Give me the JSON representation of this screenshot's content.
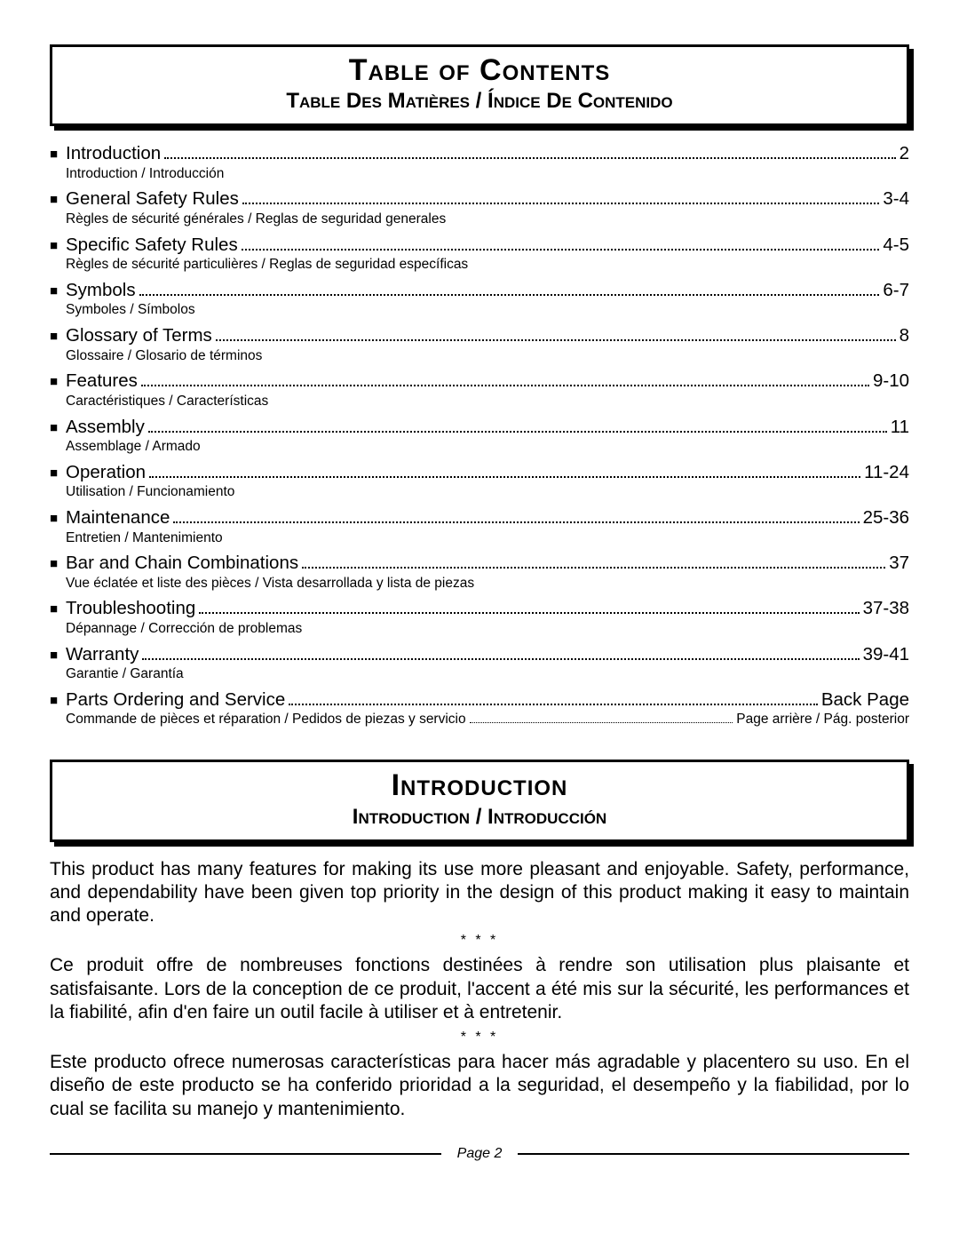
{
  "colors": {
    "text": "#000000",
    "background": "#ffffff",
    "box_border": "#000000",
    "box_shadow": "#000000",
    "dot_leader": "#000000",
    "footer_rule": "#000000"
  },
  "typography": {
    "body_font": "Arial, Helvetica, sans-serif",
    "title_size_pt": 26,
    "subtitle_size_pt": 18,
    "toc_label_size_pt": 15,
    "toc_sub_size_pt": 12,
    "body_size_pt": 16,
    "footer_size_pt": 12
  },
  "toc_header": {
    "title": "Table of Contents",
    "subtitle": "Table Des Matières / Índice De Contenido"
  },
  "toc": [
    {
      "label": "Introduction",
      "page": "2",
      "sub": "Introduction / Introducción"
    },
    {
      "label": "General Safety Rules",
      "page": "3-4",
      "sub": "Règles de sécurité générales / Reglas de seguridad generales"
    },
    {
      "label": "Specific Safety Rules",
      "page": "4-5",
      "sub": "Règles de sécurité particulières / Reglas de seguridad específicas"
    },
    {
      "label": "Symbols",
      "page": "6-7",
      "sub": "Symboles / Símbolos"
    },
    {
      "label": "Glossary of Terms",
      "page": "8",
      "sub": "Glossaire / Glosario de términos"
    },
    {
      "label": "Features",
      "page": "9-10",
      "sub": "Caractéristiques / Características"
    },
    {
      "label": "Assembly",
      "page": "11",
      "sub": "Assemblage / Armado"
    },
    {
      "label": "Operation",
      "page": "11-24",
      "sub": "Utilisation / Funcionamiento"
    },
    {
      "label": "Maintenance",
      "page": "25-36",
      "sub": "Entretien / Mantenimiento"
    },
    {
      "label": "Bar and Chain Combinations",
      "page": "37",
      "sub": "Vue éclatée et liste des pièces / Vista desarrollada y lista de piezas"
    },
    {
      "label": "Troubleshooting",
      "page": "37-38",
      "sub": "Dépannage / Corrección de problemas"
    },
    {
      "label": "Warranty",
      "page": "39-41",
      "sub": "Garantie / Garantía"
    },
    {
      "label": "Parts Ordering and Service",
      "page": "Back Page",
      "sub_label": "Commande de pièces et réparation / Pedidos de piezas y servicio",
      "sub_page": "Page arrière / Pág. posterior",
      "sub_has_page": true
    }
  ],
  "intro_header": {
    "title": "Introduction",
    "subtitle": "Introduction / Introducción"
  },
  "intro_paragraphs": {
    "en": "This product has many features for making its use more pleasant and enjoyable. Safety, performance, and dependability have been given top priority in the design of this product making it easy to maintain and operate.",
    "fr": "Ce produit offre de nombreuses fonctions destinées à rendre son utilisation plus plaisante et satisfaisante. Lors de la conception de ce produit, l'accent a été mis sur la sécurité, les performances et la fiabilité, afin d'en faire un outil facile à utiliser et à entretenir.",
    "es": "Este producto ofrece numerosas características para hacer más agradable y placentero su uso. En el diseño de este producto se ha conferido prioridad a la seguridad, el desempeño y la fiabilidad, por lo cual se facilita su manejo y mantenimiento."
  },
  "separator": "* * *",
  "footer": {
    "page_label": "Page 2"
  }
}
